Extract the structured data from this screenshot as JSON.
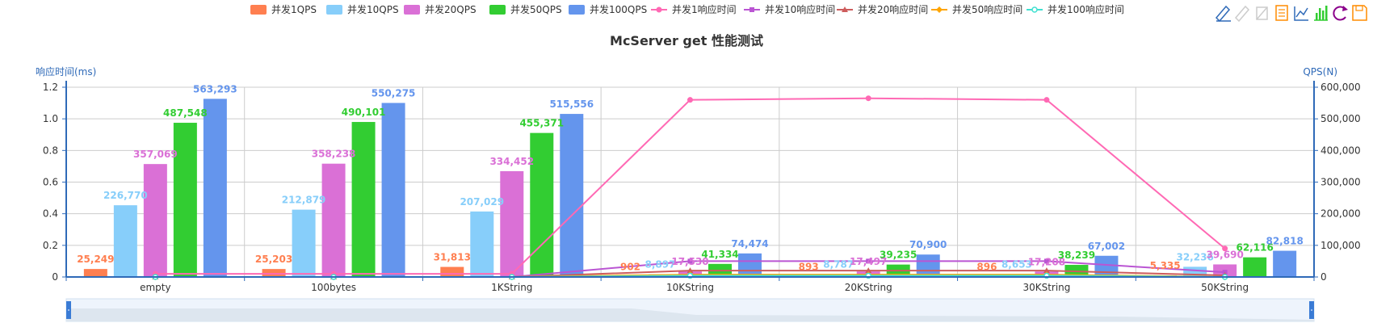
{
  "chart_data": {
    "type": "bar",
    "title": "McServer get 性能测试",
    "categories": [
      "empty",
      "100bytes",
      "1KString",
      "10KString",
      "20KString",
      "30KString",
      "50KString"
    ],
    "y_left": {
      "label": "响应时间(ms)",
      "ticks": [
        "0",
        "0.2",
        "0.4",
        "0.6",
        "0.8",
        "1.0",
        "1.2"
      ],
      "range": [
        0,
        1.2
      ]
    },
    "y_right": {
      "label": "QPS(N)",
      "ticks": [
        "0",
        "100,000",
        "200,000",
        "300,000",
        "400,000",
        "500,000",
        "600,000"
      ],
      "range": [
        0,
        600000
      ]
    },
    "bar_series": [
      {
        "name": "并发1QPS",
        "color": "#ff7f50",
        "values": [
          25249,
          25203,
          31813,
          902,
          893,
          896,
          5335
        ],
        "labels": [
          "25,249",
          "25,203",
          "31,813",
          "902",
          "893",
          "896",
          "5,335"
        ]
      },
      {
        "name": "并发10QPS",
        "color": "#87cefa",
        "values": [
          226770,
          212879,
          207029,
          8897,
          8787,
          8653,
          32236
        ],
        "labels": [
          "226,770",
          "212,879",
          "207,029",
          "8,897",
          "8,787",
          "8,653",
          "32,236"
        ]
      },
      {
        "name": "并发20QPS",
        "color": "#da70d6",
        "values": [
          357069,
          358238,
          334452,
          17530,
          17497,
          17208,
          39690
        ],
        "labels": [
          "357,069",
          "358,238",
          "334,452",
          "17,530",
          "17,497",
          "17,208",
          "39,690"
        ]
      },
      {
        "name": "并发50QPS",
        "color": "#32cd32",
        "values": [
          487548,
          490101,
          455371,
          41334,
          39235,
          38239,
          62116
        ],
        "labels": [
          "487,548",
          "490,101",
          "455,371",
          "41,334",
          "39,235",
          "38,239",
          "62,116"
        ]
      },
      {
        "name": "并发100QPS",
        "color": "#6495ed",
        "values": [
          563293,
          550275,
          515556,
          74474,
          70900,
          67002,
          82818
        ],
        "labels": [
          "563,293",
          "550,275",
          "515,556",
          "74,474",
          "70,900",
          "67,002",
          "82,818"
        ]
      }
    ],
    "line_series": [
      {
        "name": "并发1响应时间",
        "color": "#ff69b4",
        "marker": "circle",
        "values": [
          0.02,
          0.02,
          0.02,
          1.12,
          1.13,
          1.12,
          0.18
        ]
      },
      {
        "name": "并发10响应时间",
        "color": "#ba55d3",
        "marker": "square",
        "values": [
          0.0,
          0.0,
          0.0,
          0.1,
          0.1,
          0.1,
          0.03
        ]
      },
      {
        "name": "并发20响应时间",
        "color": "#cd5c5c",
        "marker": "triangle",
        "values": [
          0.0,
          0.0,
          0.0,
          0.04,
          0.04,
          0.04,
          0.01
        ]
      },
      {
        "name": "并发50响应时间",
        "color": "#ffa500",
        "marker": "diamond",
        "values": [
          0.0,
          0.0,
          0.0,
          0.015,
          0.015,
          0.015,
          0.0
        ]
      },
      {
        "name": "并发100响应时间",
        "color": "#40e0d0",
        "marker": "hollow-circle",
        "values": [
          0.0,
          0.0,
          0.0,
          0.008,
          0.008,
          0.008,
          0.0
        ]
      }
    ],
    "grid": true,
    "legend_position": "top"
  },
  "toolbox": {
    "color": "#2f6ab8",
    "icons": [
      "mark-icon",
      "mark-undo-icon",
      "mark-clear-icon",
      "data-view-icon",
      "line-chart-icon",
      "bar-chart-icon",
      "restore-icon",
      "save-image-icon"
    ]
  },
  "data_zoom": {
    "start_percent": 0,
    "end_percent": 100
  }
}
